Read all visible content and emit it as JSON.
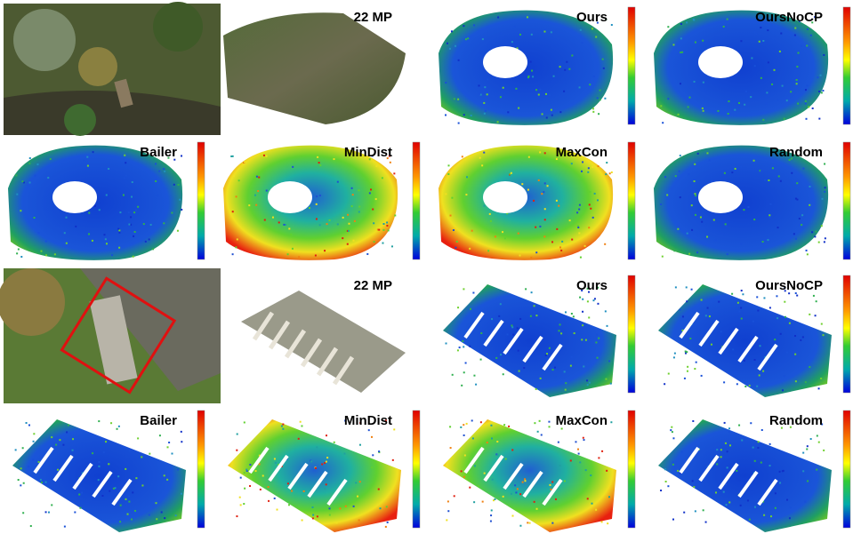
{
  "scene_1": {
    "labels": [
      "22 MP",
      "Ours",
      "OursNoCP",
      "Bailer",
      "MinDist",
      "MaxCon",
      "Random"
    ]
  },
  "scene_2": {
    "labels": [
      "22 MP",
      "Ours",
      "OursNoCP",
      "Bailer",
      "MinDist",
      "MaxCon",
      "Random"
    ]
  }
}
